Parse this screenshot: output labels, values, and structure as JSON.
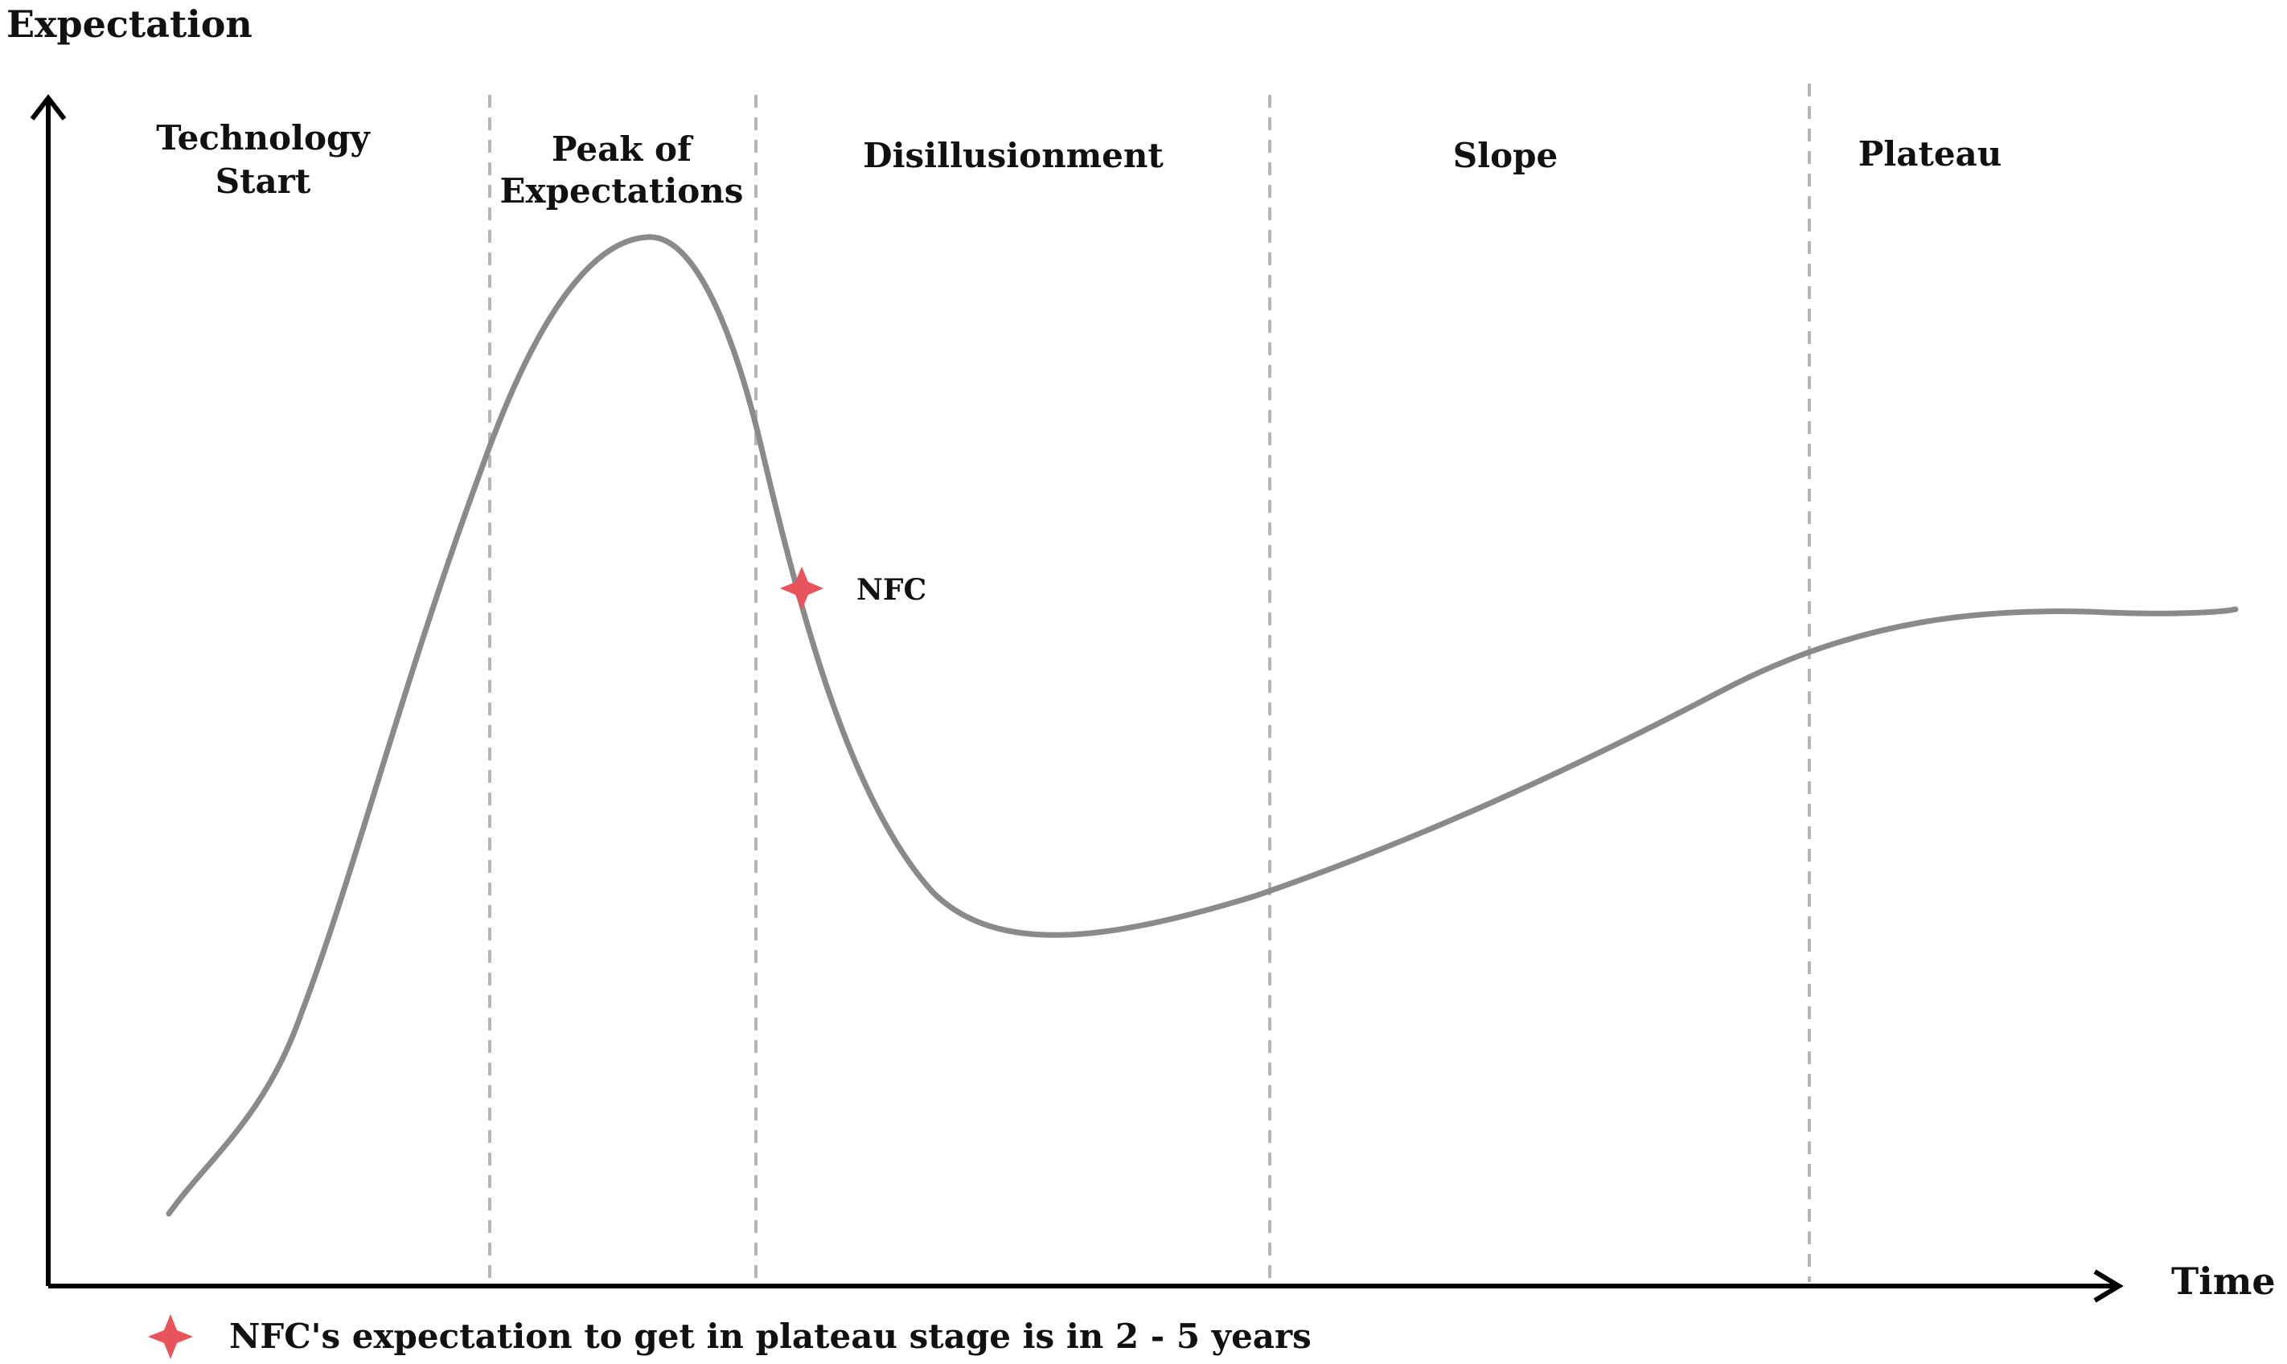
{
  "diagram": {
    "y_axis_label": "Expectation",
    "x_axis_label": "Time",
    "stages": [
      {
        "line1": "Technology",
        "line2": "Start"
      },
      {
        "line1": "Peak of",
        "line2": "Expectations"
      },
      {
        "line1": "Disillusionment",
        "line2": ""
      },
      {
        "line1": "Slope",
        "line2": ""
      },
      {
        "line1": "Plateau",
        "line2": ""
      }
    ],
    "marker": {
      "label": "NFC",
      "icon": "four-point-star-icon",
      "color": "#e8545c"
    },
    "legend": {
      "icon": "four-point-star-icon",
      "text": "NFC's expectation to get in plateau stage is in 2 - 5 years"
    },
    "curve_color": "#8a8a8a",
    "divider_color": "#b5b5b5"
  }
}
